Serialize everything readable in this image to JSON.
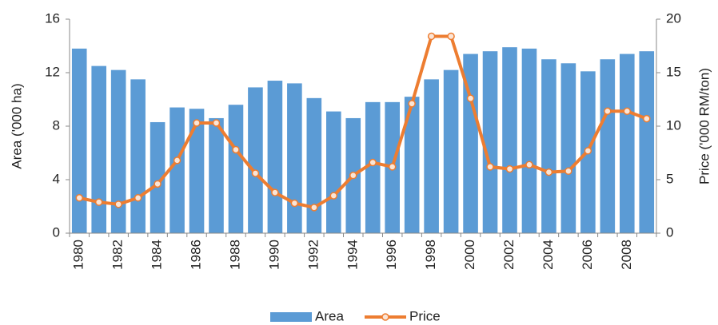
{
  "chart_data": {
    "type": "bar",
    "categories": [
      "1980",
      null,
      "1982",
      null,
      "1984",
      null,
      "1986",
      null,
      "1988",
      null,
      "1990",
      null,
      "1992",
      null,
      "1994",
      null,
      "1996",
      null,
      "1998",
      null,
      "2000",
      null,
      "2002",
      null,
      "2004",
      null,
      "2006",
      null,
      "2008",
      null
    ],
    "series": [
      {
        "name": "Area",
        "type": "bar",
        "color": "#5b9bd5",
        "axis": "y",
        "values": [
          13.8,
          12.5,
          12.2,
          11.5,
          8.3,
          9.4,
          9.3,
          8.6,
          9.6,
          10.9,
          11.4,
          11.2,
          10.1,
          9.1,
          8.6,
          9.8,
          9.8,
          10.2,
          11.5,
          12.2,
          13.4,
          13.6,
          13.9,
          13.8,
          13.0,
          12.7,
          12.1,
          13.0,
          13.4,
          13.6
        ]
      },
      {
        "name": "Price",
        "type": "line",
        "color": "#ed7d31",
        "axis": "y2",
        "values": [
          3.3,
          2.9,
          2.7,
          3.3,
          4.6,
          6.8,
          10.3,
          10.3,
          7.8,
          5.6,
          3.8,
          2.8,
          2.4,
          3.5,
          5.4,
          6.6,
          6.2,
          12.1,
          18.4,
          18.4,
          12.6,
          6.2,
          6.0,
          6.4,
          5.7,
          5.8,
          7.7,
          11.4,
          11.4,
          10.7
        ]
      }
    ],
    "y_label": "Area ('000 ha)",
    "y2_label": "Price ('000 RM/ton)",
    "ylim": [
      0,
      16
    ],
    "yticks": [
      0,
      4,
      8,
      12,
      16
    ],
    "y2lim": [
      0,
      20
    ],
    "y2ticks": [
      0,
      5,
      10,
      15,
      20
    ],
    "legend": "bottom"
  }
}
